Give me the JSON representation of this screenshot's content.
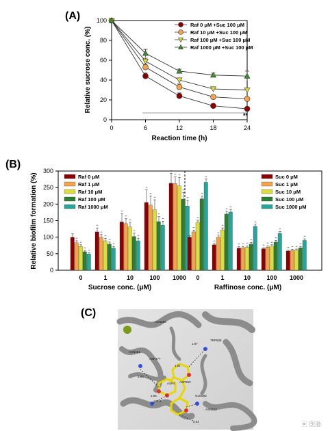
{
  "chart_data": [
    {
      "panel": "(A)",
      "type": "line",
      "xlabel": "Reaction time (h)",
      "ylabel": "Relative sucrose conc. (%)",
      "x": [
        0,
        6,
        12,
        18,
        24
      ],
      "xticks": [
        "0",
        "6",
        "12",
        "18",
        "24"
      ],
      "yticks": [
        "0",
        "20",
        "40",
        "60",
        "80",
        "100"
      ],
      "xlim": [
        0,
        24
      ],
      "ylim": [
        0,
        100
      ],
      "annotation": "**",
      "series": [
        {
          "name": "Raf 0 μM +Suc 100 μM",
          "color": "#8b0000",
          "marker": "circle",
          "values": [
            100,
            44,
            24,
            14,
            11
          ],
          "errors": [
            0,
            3,
            3,
            1,
            1
          ]
        },
        {
          "name": "Raf 10 μM +Suc 100 μM",
          "color": "#f4a24c",
          "marker": "circle",
          "values": [
            100,
            53,
            33,
            23,
            21
          ],
          "errors": [
            0,
            3,
            3,
            2,
            2
          ]
        },
        {
          "name": "Raf 100 μM +Suc 100 μM",
          "color": "#dcdc3c",
          "marker": "triangle-down",
          "values": [
            100,
            59,
            40,
            31,
            30
          ],
          "errors": [
            0,
            3,
            2,
            2,
            2
          ]
        },
        {
          "name": "Raf 1000 μM +Suc 100 μM",
          "color": "#3a8f2a",
          "marker": "triangle-up",
          "values": [
            100,
            67,
            49,
            45,
            44
          ],
          "errors": [
            0,
            4,
            2,
            2,
            5
          ]
        }
      ]
    },
    {
      "panel": "(B)",
      "type": "bar",
      "ylabel": "Relative biofilm formation (%)",
      "yticks": [
        "0",
        "50",
        "100",
        "150",
        "200",
        "250",
        "300"
      ],
      "ylim": [
        0,
        300
      ],
      "groups": [
        {
          "xlabel": "Sucrose conc. (μM)",
          "categories": [
            "0",
            "1",
            "10",
            "100",
            "1000"
          ],
          "series": [
            {
              "name": "Raf 0 μM",
              "color": "#8b0000",
              "values": [
                100,
                116,
                146,
                205,
                263
              ],
              "errors": [
                10,
                12,
                25,
                38,
                30
              ]
            },
            {
              "name": "Raf 1 μM",
              "color": "#f4a24c",
              "values": [
                83,
                100,
                141,
                197,
                262
              ],
              "errors": [
                6,
                8,
                15,
                28,
                20
              ]
            },
            {
              "name": "Raf 10 μM",
              "color": "#dcdc3c",
              "values": [
                72,
                89,
                131,
                183,
                255
              ],
              "errors": [
                5,
                7,
                14,
                30,
                25
              ]
            },
            {
              "name": "Raf 100 μM",
              "color": "#2e7d32",
              "values": [
                56,
                79,
                102,
                147,
                215
              ],
              "errors": [
                4,
                6,
                10,
                15,
                20
              ]
            },
            {
              "name": "Raf 1000 μM",
              "color": "#26a69a",
              "values": [
                49,
                67,
                89,
                136,
                194
              ],
              "errors": [
                4,
                5,
                8,
                12,
                18
              ]
            }
          ],
          "annotation": "**"
        },
        {
          "xlabel": "Raffinose conc. (μM)",
          "categories": [
            "0",
            "1",
            "10",
            "100",
            "1000"
          ],
          "series": [
            {
              "name": "Suc 0 μM",
              "color": "#8b0000",
              "values": [
                100,
                77,
                67,
                65,
                58
              ],
              "errors": [
                4,
                4,
                4,
                3,
                3
              ]
            },
            {
              "name": "Suc 1 μM",
              "color": "#f4a24c",
              "values": [
                116,
                100,
                68,
                70,
                60
              ],
              "errors": [
                5,
                6,
                4,
                4,
                3
              ]
            },
            {
              "name": "Suc 10 μM",
              "color": "#dcdc3c",
              "values": [
                145,
                122,
                70,
                73,
                61
              ],
              "errors": [
                6,
                6,
                4,
                4,
                3
              ]
            },
            {
              "name": "Suc 100 μM",
              "color": "#2e7d32",
              "values": [
                216,
                170,
                79,
                85,
                68
              ],
              "errors": [
                8,
                8,
                5,
                5,
                4
              ]
            },
            {
              "name": "Suc 1000 μM",
              "color": "#26a69a",
              "values": [
                266,
                176,
                133,
                111,
                90
              ],
              "errors": [
                10,
                8,
                6,
                6,
                5
              ]
            }
          ],
          "annotation": "**"
        }
      ]
    }
  ],
  "panelC": {
    "label": "(C)",
    "residues": [
      "ASN481",
      "ASP477",
      "ASP593",
      "ASP4",
      "GLN592",
      "ASN596",
      "TRP508",
      "ASN413",
      "ASP4"
    ],
    "distances": [
      "1.97",
      "2.84",
      "1.81",
      "2.65",
      "2.04"
    ]
  }
}
